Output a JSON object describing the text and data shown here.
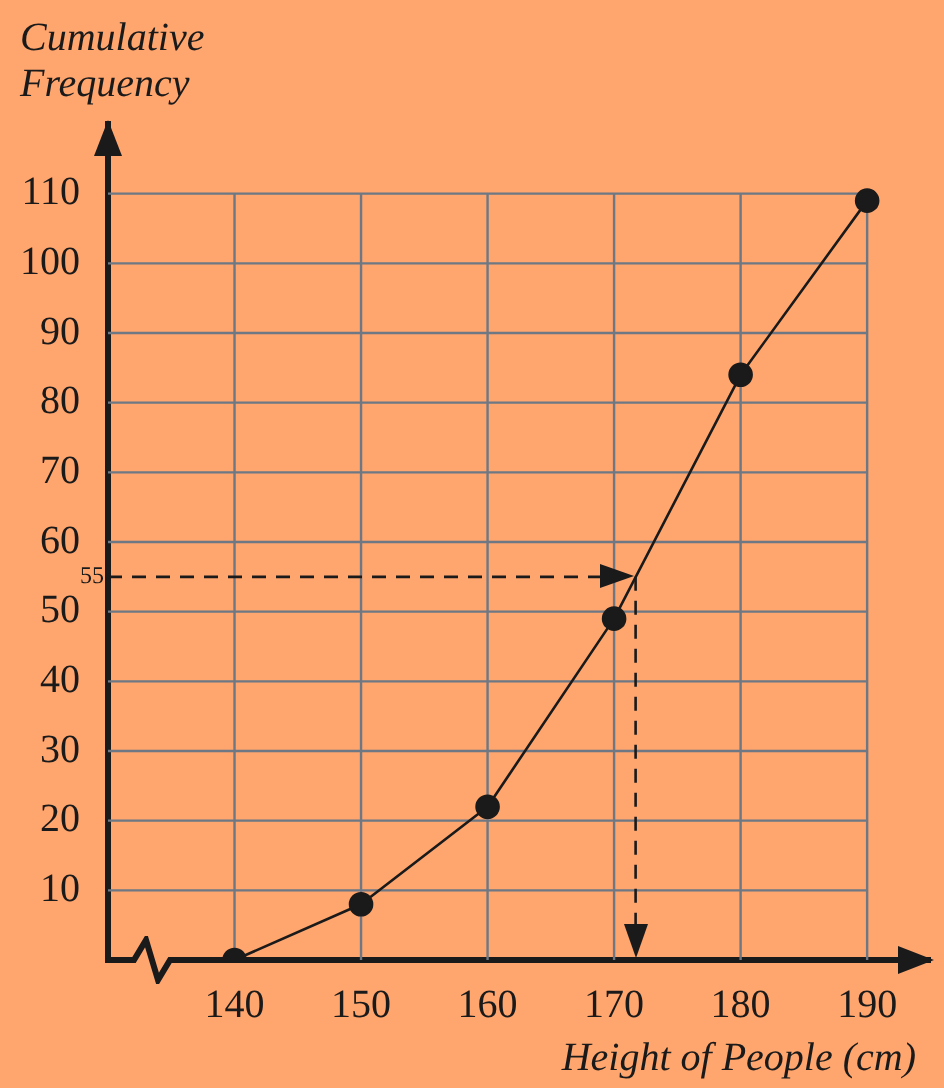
{
  "chart_data": {
    "type": "line",
    "xlabel": "Height of People (cm)",
    "ylabel": "Cumulative Frequency",
    "x": [
      140,
      150,
      160,
      170,
      180,
      190
    ],
    "series": [
      {
        "color": "#1a1a1a",
        "values": [
          0,
          8,
          22,
          49,
          84,
          109
        ]
      }
    ],
    "xlim": [
      130,
      195
    ],
    "xticks": [
      140,
      150,
      160,
      170,
      180,
      190
    ],
    "ylim": [
      0,
      120
    ],
    "yticks": [
      10,
      20,
      30,
      40,
      50,
      60,
      70,
      80,
      90,
      100,
      110
    ],
    "grid": true,
    "legend": false,
    "marker": "circle",
    "line_style": "solid",
    "ref_lines": [
      {
        "axis": "y",
        "value": 55,
        "label": "55",
        "line_style": "dashed"
      },
      {
        "axis": "x",
        "value": 171.7,
        "line_style": "dashed"
      }
    ]
  }
}
